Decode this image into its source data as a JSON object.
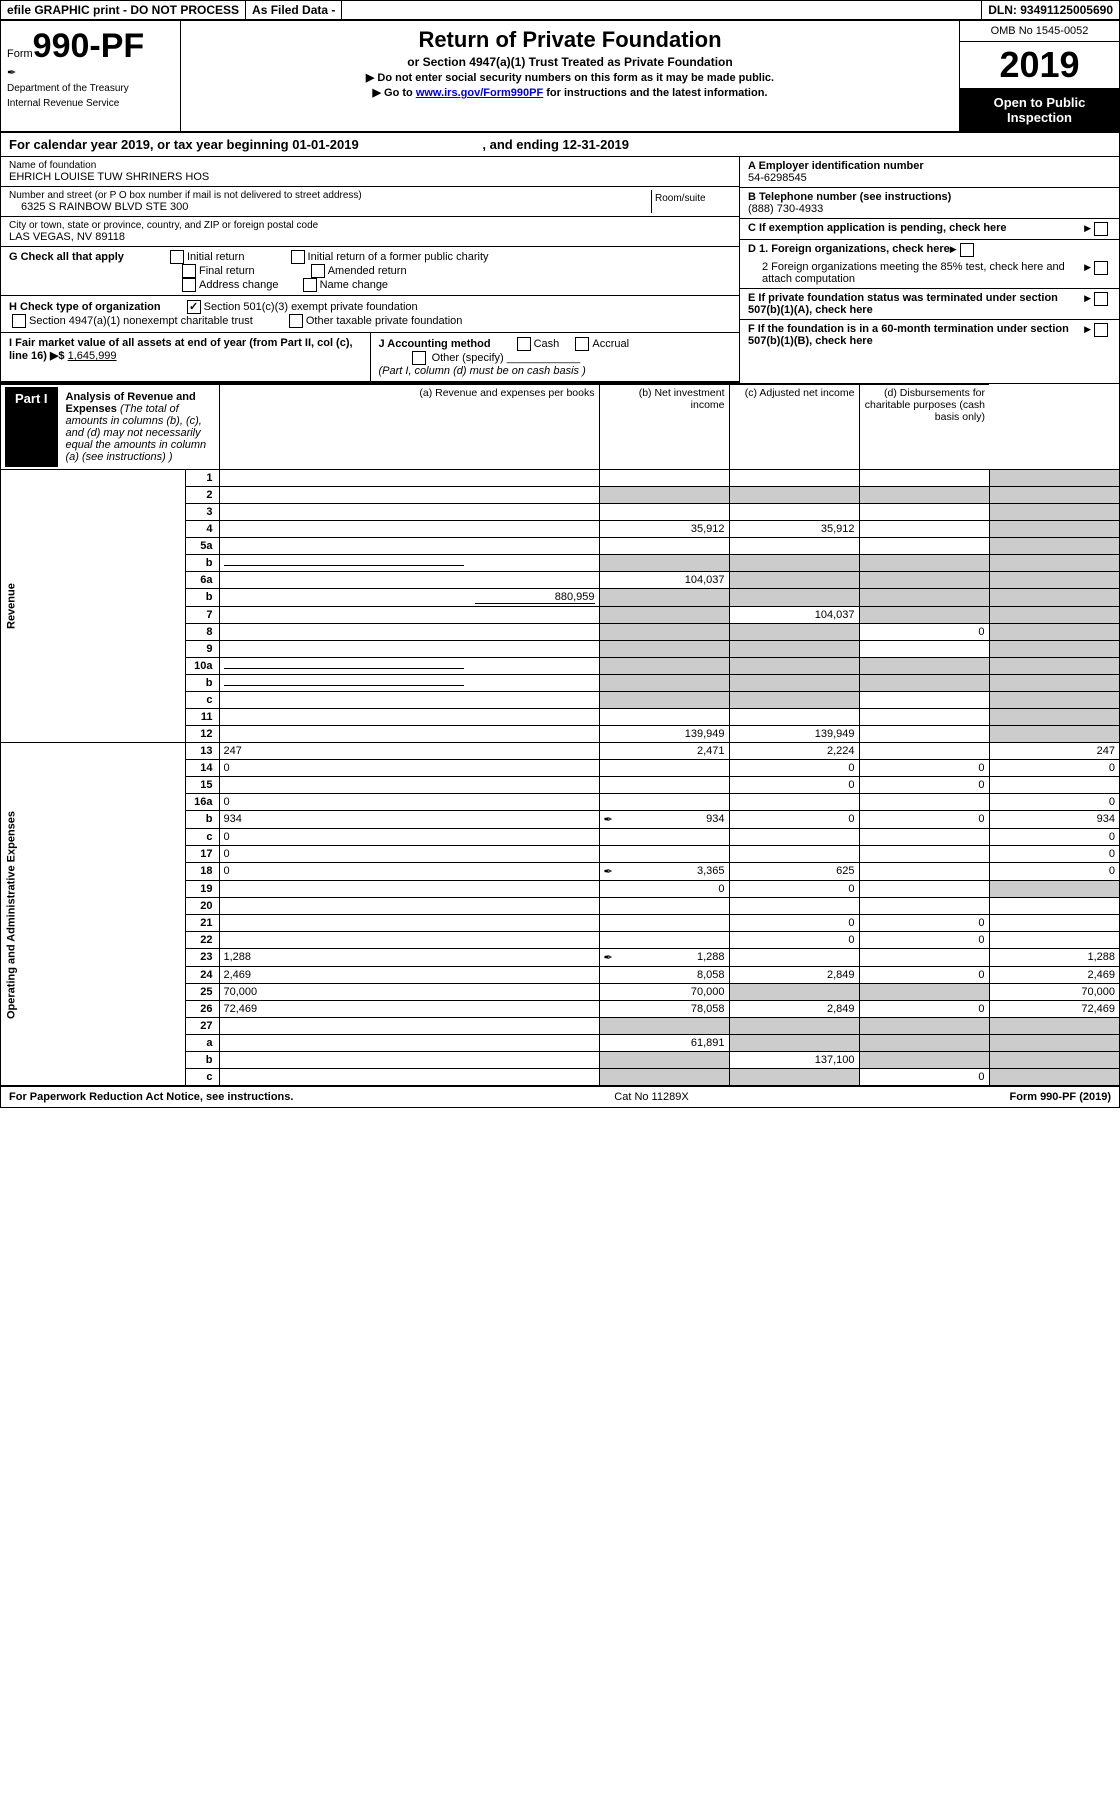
{
  "header": {
    "efile": "efile GRAPHIC print - DO NOT PROCESS",
    "asFiled": "As Filed Data -",
    "dln": "DLN: 93491125005690"
  },
  "formId": {
    "formWord": "Form",
    "number": "990-PF",
    "dept1": "Department of the Treasury",
    "dept2": "Internal Revenue Service"
  },
  "title": {
    "main": "Return of Private Foundation",
    "sub": "or Section 4947(a)(1) Trust Treated as Private Foundation",
    "instr1": "▶ Do not enter social security numbers on this form as it may be made public.",
    "instr2Prefix": "▶ Go to ",
    "instr2Link": "www.irs.gov/Form990PF",
    "instr2Suffix": " for instructions and the latest information."
  },
  "yearBlock": {
    "omb": "OMB No 1545-0052",
    "year": "2019",
    "open": "Open to Public Inspection"
  },
  "calYear": {
    "prefix": "For calendar year 2019, or tax year beginning 01-01-2019",
    "mid": ", and ending 12-31-2019"
  },
  "left": {
    "nameLabel": "Name of foundation",
    "name": "EHRICH LOUISE TUW SHRINERS HOS",
    "addrLabel": "Number and street (or P O  box number if mail is not delivered to street address)",
    "addr": "6325 S RAINBOW BLVD STE 300",
    "roomLabel": "Room/suite",
    "cityLabel": "City or town, state or province, country, and ZIP or foreign postal code",
    "city": "LAS VEGAS, NV  89118",
    "g": "G Check all that apply",
    "gOpts": [
      "Initial return",
      "Initial return of a former public charity",
      "Final return",
      "Amended return",
      "Address change",
      "Name change"
    ],
    "h": "H Check type of organization",
    "hOpts": [
      "Section 501(c)(3) exempt private foundation",
      "Section 4947(a)(1) nonexempt charitable trust",
      "Other taxable private foundation"
    ],
    "i": "I Fair market value of all assets at end of year (from Part II, col (c), line 16) ▶$",
    "iVal": "1,645,999",
    "j": "J Accounting method",
    "jOpts": [
      "Cash",
      "Accrual"
    ],
    "jOther": "Other (specify)",
    "jNote": "(Part I, column (d) must be on cash basis )"
  },
  "right": {
    "aLabel": "A Employer identification number",
    "a": "54-6298545",
    "bLabel": "B Telephone number (see instructions)",
    "b": "(888) 730-4933",
    "c": "C If exemption application is pending, check here",
    "d1": "D 1. Foreign organizations, check here",
    "d2": "2 Foreign organizations meeting the 85% test, check here and attach computation",
    "e": "E If private foundation status was terminated under section 507(b)(1)(A), check here",
    "f": "F If the foundation is in a 60-month termination under section 507(b)(1)(B), check here"
  },
  "part1": {
    "label": "Part I",
    "title": "Analysis of Revenue and Expenses",
    "titleNote": "(The total of amounts in columns (b), (c), and (d) may not necessarily equal the amounts in column (a) (see instructions) )",
    "colA": "(a)   Revenue and expenses per books",
    "colB": "(b)   Net investment income",
    "colC": "(c)   Adjusted net income",
    "colD": "(d)   Disbursements for charitable purposes (cash basis only)"
  },
  "sideLabels": {
    "revenue": "Revenue",
    "expenses": "Operating and Administrative Expenses"
  },
  "rows": [
    {
      "n": "1",
      "d": "",
      "a": "",
      "b": "",
      "c": "",
      "dGrey": true
    },
    {
      "n": "2",
      "d": "",
      "a": "",
      "b": "",
      "c": "",
      "allGrey": true
    },
    {
      "n": "3",
      "d": "",
      "a": "",
      "b": "",
      "c": "",
      "dGrey": true
    },
    {
      "n": "4",
      "d": "",
      "a": "35,912",
      "b": "35,912",
      "c": "",
      "dGrey": true
    },
    {
      "n": "5a",
      "d": "",
      "a": "",
      "b": "",
      "c": "",
      "dGrey": true
    },
    {
      "n": "b",
      "d": "",
      "a": "",
      "b": "",
      "c": "",
      "allGrey": true,
      "underline": true
    },
    {
      "n": "6a",
      "d": "",
      "a": "104,037",
      "b": "",
      "c": "",
      "bcdGrey": true
    },
    {
      "n": "b",
      "d": "",
      "extra": "880,959",
      "a": "",
      "b": "",
      "c": "",
      "allGrey": true
    },
    {
      "n": "7",
      "d": "",
      "a": "",
      "b": "104,037",
      "c": "",
      "aGrey": true,
      "cdGrey": true
    },
    {
      "n": "8",
      "d": "",
      "a": "",
      "b": "",
      "c": "0",
      "abGrey": true,
      "dGrey": true
    },
    {
      "n": "9",
      "d": "",
      "a": "",
      "b": "",
      "c": "",
      "abGrey": true,
      "dGrey": true
    },
    {
      "n": "10a",
      "d": "",
      "a": "",
      "b": "",
      "c": "",
      "allGrey": true,
      "underline": true
    },
    {
      "n": "b",
      "d": "",
      "a": "",
      "b": "",
      "c": "",
      "allGrey": true,
      "underline": true
    },
    {
      "n": "c",
      "d": "",
      "a": "",
      "b": "",
      "c": "",
      "abGrey": true,
      "dGrey": true
    },
    {
      "n": "11",
      "d": "",
      "a": "",
      "b": "",
      "c": "",
      "dGrey": true
    },
    {
      "n": "12",
      "d": "",
      "a": "139,949",
      "b": "139,949",
      "c": "",
      "dGrey": true
    }
  ],
  "expRows": [
    {
      "n": "13",
      "d": "247",
      "a": "2,471",
      "b": "2,224",
      "c": ""
    },
    {
      "n": "14",
      "d": "0",
      "a": "",
      "b": "0",
      "c": "0"
    },
    {
      "n": "15",
      "d": "",
      "a": "",
      "b": "0",
      "c": "0"
    },
    {
      "n": "16a",
      "d": "0",
      "a": "",
      "b": "",
      "c": ""
    },
    {
      "n": "b",
      "d": "934",
      "icon": true,
      "a": "934",
      "b": "0",
      "c": "0"
    },
    {
      "n": "c",
      "d": "0",
      "a": "",
      "b": "",
      "c": ""
    },
    {
      "n": "17",
      "d": "0",
      "a": "",
      "b": "",
      "c": ""
    },
    {
      "n": "18",
      "d": "0",
      "icon": true,
      "a": "3,365",
      "b": "625",
      "c": ""
    },
    {
      "n": "19",
      "d": "",
      "a": "0",
      "b": "0",
      "c": "",
      "dGrey": true
    },
    {
      "n": "20",
      "d": "",
      "a": "",
      "b": "",
      "c": ""
    },
    {
      "n": "21",
      "d": "",
      "a": "",
      "b": "0",
      "c": "0"
    },
    {
      "n": "22",
      "d": "",
      "a": "",
      "b": "0",
      "c": "0"
    },
    {
      "n": "23",
      "d": "1,288",
      "icon": true,
      "a": "1,288",
      "b": "",
      "c": ""
    },
    {
      "n": "24",
      "d": "2,469",
      "a": "8,058",
      "b": "2,849",
      "c": "0"
    },
    {
      "n": "25",
      "d": "70,000",
      "a": "70,000",
      "b": "",
      "c": "",
      "bcGrey": true
    },
    {
      "n": "26",
      "d": "72,469",
      "a": "78,058",
      "b": "2,849",
      "c": "0"
    },
    {
      "n": "27",
      "d": "",
      "a": "",
      "b": "",
      "c": "",
      "allGrey": true
    },
    {
      "n": "a",
      "d": "",
      "a": "61,891",
      "b": "",
      "c": "",
      "bcdGrey": true
    },
    {
      "n": "b",
      "d": "",
      "a": "",
      "b": "137,100",
      "c": "",
      "aGrey": true,
      "cdGrey": true
    },
    {
      "n": "c",
      "d": "",
      "a": "",
      "b": "",
      "c": "0",
      "abGrey": true,
      "dGrey": true
    }
  ],
  "footer": {
    "left": "For Paperwork Reduction Act Notice, see instructions.",
    "mid": "Cat No 11289X",
    "right": "Form 990-PF (2019)"
  }
}
